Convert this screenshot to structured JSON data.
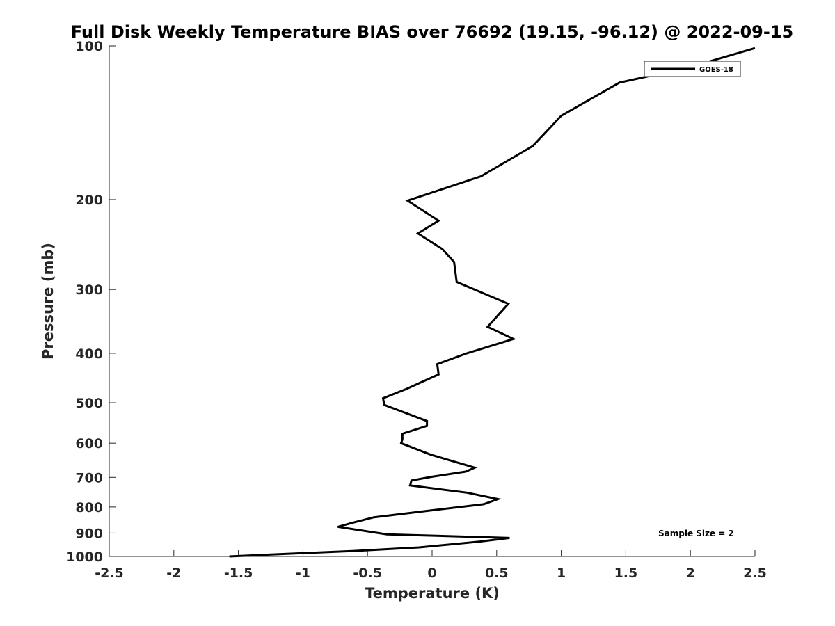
{
  "chart_data": {
    "type": "line",
    "title": "Full Disk Weekly Temperature BIAS over 76692 (19.15, -96.12) @ 2022-09-15",
    "xlabel": "Temperature (K)",
    "ylabel": "Pressure (mb)",
    "xlim": [
      -2.5,
      2.5
    ],
    "ylim": [
      1000,
      100
    ],
    "yscale": "log",
    "y_reversed": true,
    "grid": false,
    "x_ticks": [
      -2.5,
      -2,
      -1.5,
      -1,
      -0.5,
      0,
      0.5,
      1,
      1.5,
      2,
      2.5
    ],
    "x_tick_labels": [
      "-2.5",
      "-2",
      "-1.5",
      "-1",
      "-0.5",
      "0",
      "0.5",
      "1",
      "1.5",
      "2",
      "2.5"
    ],
    "y_ticks": [
      100,
      200,
      300,
      400,
      500,
      600,
      700,
      800,
      900,
      1000
    ],
    "y_tick_labels": [
      "100",
      "200",
      "300",
      "400",
      "500",
      "600",
      "700",
      "800",
      "900",
      "1000"
    ],
    "legend": {
      "position": "top-right",
      "entries": [
        "GOES-18"
      ]
    },
    "annotation": "Sample Size = 2",
    "series": [
      {
        "name": "GOES-18",
        "color": "#000000",
        "points": [
          [
            2.5,
            101
          ],
          [
            2.0,
            110
          ],
          [
            1.45,
            118
          ],
          [
            1.0,
            137
          ],
          [
            0.78,
            157
          ],
          [
            0.38,
            180
          ],
          [
            -0.19,
            201
          ],
          [
            0.05,
            220
          ],
          [
            -0.11,
            233
          ],
          [
            0.08,
            250
          ],
          [
            0.17,
            265
          ],
          [
            0.19,
            290
          ],
          [
            0.59,
            320
          ],
          [
            0.43,
            355
          ],
          [
            0.63,
            375
          ],
          [
            0.27,
            400
          ],
          [
            0.04,
            420
          ],
          [
            0.05,
            440
          ],
          [
            -0.2,
            470
          ],
          [
            -0.38,
            490
          ],
          [
            -0.37,
            505
          ],
          [
            -0.04,
            543
          ],
          [
            -0.04,
            555
          ],
          [
            -0.23,
            575
          ],
          [
            -0.23,
            590
          ],
          [
            -0.24,
            600
          ],
          [
            -0.01,
            632
          ],
          [
            0.33,
            670
          ],
          [
            0.26,
            682
          ],
          [
            0.0,
            698
          ],
          [
            -0.16,
            710
          ],
          [
            -0.17,
            726
          ],
          [
            0.27,
            750
          ],
          [
            0.51,
            772
          ],
          [
            0.4,
            790
          ],
          [
            0.0,
            812
          ],
          [
            -0.45,
            838
          ],
          [
            -0.6,
            857
          ],
          [
            -0.73,
            875
          ],
          [
            -0.35,
            905
          ],
          [
            0.6,
            920
          ],
          [
            0.37,
            935
          ],
          [
            -0.1,
            960
          ],
          [
            -0.58,
            975
          ],
          [
            -1.0,
            985
          ],
          [
            -1.57,
            1000
          ]
        ]
      }
    ]
  }
}
